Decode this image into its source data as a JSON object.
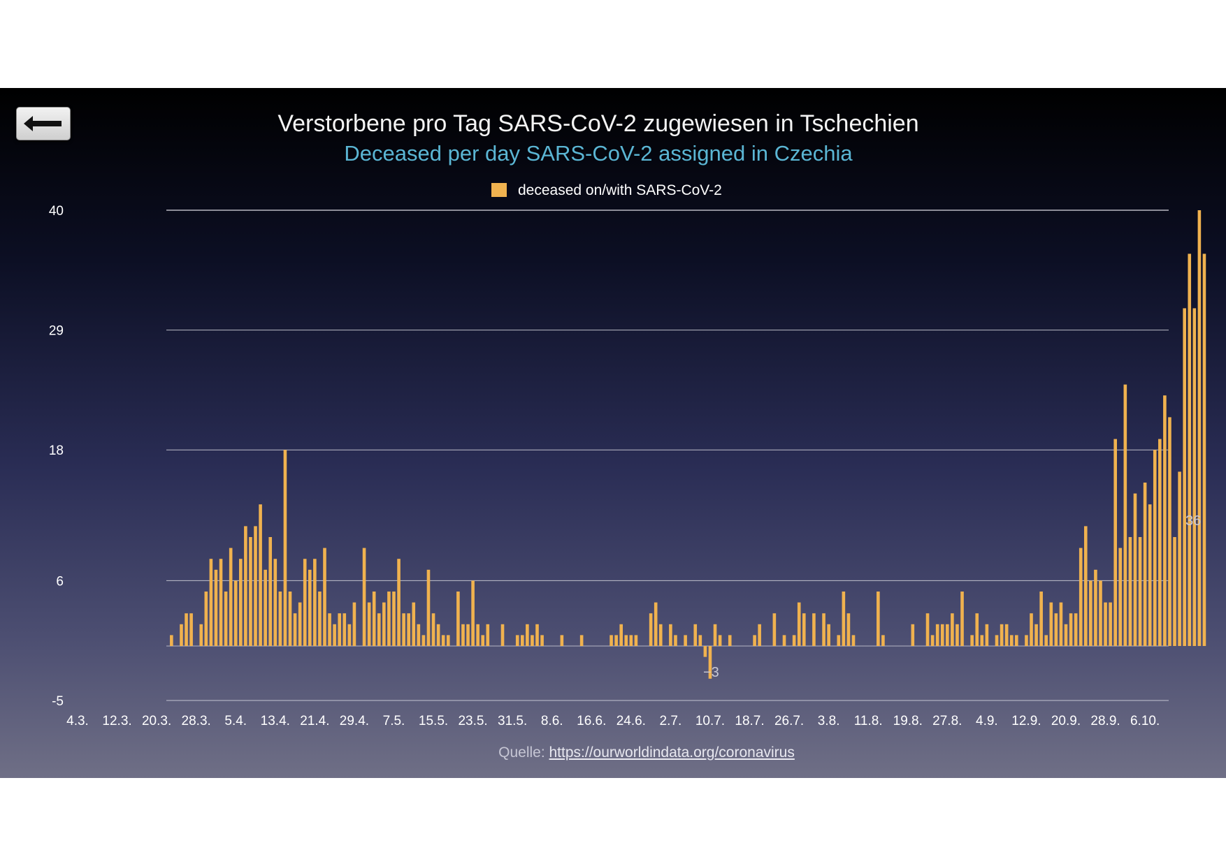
{
  "back_button": {
    "icon": "arrow-left-icon",
    "label": ""
  },
  "chart_data": {
    "type": "bar",
    "title": "Verstorbene pro Tag SARS-CoV-2 zugewiesen in Tschechien",
    "subtitle": "Deceased per day SARS-CoV-2 assigned in Czechia",
    "start_date": "4.3.",
    "x_tick_labels": [
      "4.3.",
      "12.3.",
      "20.3.",
      "28.3.",
      "5.4.",
      "13.4.",
      "21.4.",
      "29.4.",
      "7.5.",
      "15.5.",
      "23.5.",
      "31.5.",
      "8.6.",
      "16.6.",
      "24.6.",
      "2.7.",
      "10.7.",
      "18.7.",
      "26.7.",
      "3.8.",
      "11.8.",
      "19.8.",
      "27.8.",
      "4.9.",
      "12.9.",
      "20.9.",
      "28.9.",
      "6.10."
    ],
    "y_ticks": [
      40,
      29,
      18,
      6,
      -5
    ],
    "ylim": [
      -5,
      40
    ],
    "grid": true,
    "legend": "top-center",
    "series": [
      {
        "name": "deceased on/with SARS-CoV-2",
        "color": "#f0b24f",
        "values": [
          0,
          0,
          0,
          0,
          0,
          0,
          0,
          0,
          0,
          0,
          0,
          0,
          0,
          0,
          0,
          0,
          0,
          0,
          0,
          1,
          0,
          2,
          3,
          3,
          0,
          2,
          5,
          8,
          7,
          8,
          5,
          9,
          6,
          8,
          11,
          10,
          11,
          13,
          7,
          10,
          8,
          5,
          18,
          5,
          3,
          4,
          8,
          7,
          8,
          5,
          9,
          3,
          2,
          3,
          3,
          2,
          4,
          0,
          9,
          4,
          5,
          3,
          4,
          5,
          5,
          8,
          3,
          3,
          4,
          2,
          1,
          7,
          3,
          2,
          1,
          1,
          0,
          5,
          2,
          2,
          6,
          2,
          1,
          2,
          0,
          0,
          2,
          0,
          0,
          1,
          1,
          2,
          1,
          2,
          1,
          0,
          0,
          0,
          1,
          0,
          0,
          0,
          1,
          0,
          0,
          0,
          0,
          0,
          1,
          1,
          2,
          1,
          1,
          1,
          0,
          0,
          3,
          4,
          2,
          0,
          2,
          1,
          0,
          1,
          0,
          2,
          1,
          -1,
          -3,
          2,
          1,
          0,
          1,
          0,
          0,
          0,
          0,
          1,
          2,
          0,
          0,
          3,
          0,
          1,
          0,
          1,
          4,
          3,
          0,
          3,
          0,
          3,
          2,
          0,
          1,
          5,
          3,
          1,
          0,
          0,
          0,
          0,
          5,
          1,
          0,
          0,
          0,
          0,
          0,
          2,
          0,
          0,
          3,
          1,
          2,
          2,
          2,
          3,
          2,
          5,
          0,
          1,
          3,
          1,
          2,
          0,
          1,
          2,
          2,
          1,
          1,
          0,
          1,
          3,
          2,
          5,
          1,
          4,
          3,
          4,
          2,
          3,
          3,
          9,
          11,
          6,
          7,
          6,
          4,
          4,
          19,
          9,
          24,
          10,
          14,
          10,
          15,
          13,
          18,
          19,
          23,
          21,
          10,
          16,
          31,
          36,
          31,
          40,
          36
        ]
      }
    ],
    "annotations": [
      "36",
      "−3"
    ]
  },
  "source": {
    "prefix": "Quelle: ",
    "link_text": "https://ourworldindata.org/coronavirus"
  }
}
